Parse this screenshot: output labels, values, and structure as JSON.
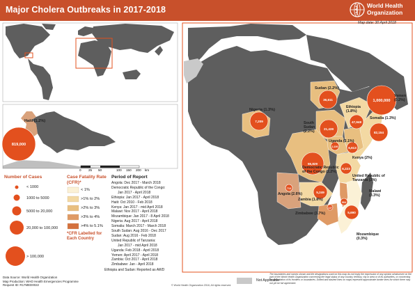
{
  "title": "Major Cholera Outbreaks in 2017-2018",
  "organization": {
    "line1": "World Health",
    "line2": "Organization"
  },
  "map_date": "Map date: 30 April 2018",
  "countries": [
    {
      "name": "Haiti (1.2%)",
      "cases": "819,000"
    },
    {
      "name": "Nigeria (1.3%)",
      "cases": "7,209"
    },
    {
      "name": "Sudan (2.2%)",
      "cases": "36,611"
    },
    {
      "name": "Yemen (0.2%)",
      "cases": "1,000,000"
    },
    {
      "name": "Ethiopia (1.8%)",
      "cases": "47,948"
    },
    {
      "name": "Somalia (1.3%)",
      "cases": "82,154"
    },
    {
      "name": "South Sudan (2.2%)",
      "cases": "21,439"
    },
    {
      "name": "Uganda (2.1%)",
      "cases": "2,100"
    },
    {
      "name": "Kenya (2%)",
      "cases": "6,613"
    },
    {
      "name": "Democratic Republic of the Congo (2.2%)",
      "cases": "55,829"
    },
    {
      "name": "United Republic of Tanzania (2%)",
      "cases": "6,223"
    },
    {
      "name": "Angola (2.6%)",
      "cases": "713"
    },
    {
      "name": "Zambia (1.8%)",
      "cases": "5,249"
    },
    {
      "name": "Malawi (3.3%)",
      "cases": "904"
    },
    {
      "name": "Mozambique (0.3%)",
      "cases": "5,690"
    },
    {
      "name": "Zimbabwe (3.7%)",
      "cases": "137"
    }
  ],
  "legend_cases": {
    "title": "Number of Cases",
    "items": [
      "< 1000",
      "1000 to 5000",
      "5000 to 20,000",
      "20,000 to 100,000",
      "> 100,000"
    ]
  },
  "legend_cfr": {
    "title": "Case Fatality Rate (CFR)*",
    "items": [
      "< 1%",
      ">1% to 2%",
      ">2% to 3%",
      ">3% to 4%",
      ">4% to 5.1%"
    ],
    "note": "*CFR Labelled for Each Country",
    "colors": [
      "#fbf1d6",
      "#f3d9a3",
      "#e8bf80",
      "#df9a65",
      "#d4713e"
    ]
  },
  "period": {
    "title": "Period of Report",
    "lines": [
      "Angola: Dec 2017 - March 2018",
      "Democratic Republic of the Congo:",
      "Jan 2017 - April 2018",
      "Ethiopia: Jan 2017 - April 2018",
      "Haiti: Oct 2010 - Feb 2018",
      "Kenya: Jan 2017 - mid April 2018",
      "Malawi: Nov 2017 - April 2018",
      "Mozambique: Jan 2017 - 8 April 2018",
      "Nigeria: Aug 2017 - April 2018",
      "Somalia: March 2017 - March 2018",
      "South Sudan: Aug 2016 - Dec 2017",
      "Sudan: Aug 2016 - Feb 2018",
      "United Republic of Tanzania:",
      "Jan 2017 - mid April 2018",
      "Uganda: Feb 2018 - April 2018",
      "Yemen: April 2017 - April 2018",
      "Zambia: Oct 2017 - April 2018",
      "Zimbabwe: Jan - April 2018"
    ],
    "note": "Ethiopia and Sudan: Reported as AWD"
  },
  "scale": {
    "ticks": [
      "0",
      "25",
      "50",
      "100",
      "150",
      "200"
    ],
    "unit": "km"
  },
  "not_applicable": "Not Applicable",
  "footer": {
    "source": "Data Source: World Health Organization",
    "production": "Map Production: WHO Health Emergencies Programme",
    "request": "Request ID: R17MED0022",
    "copyright": "© World Health Organization 2018, All rights reserved.",
    "disclaimer": "The boundaries and names shown and the designations used on this map do not imply the expression of any opinion whatsoever on the part of the World Health Organization concerning the legal status of any country, territory, city or area or of its authorities, or concerning the delimitation of its frontiers or boundaries. Dotted and dashed lines on maps represent approximate border lines for which there may not yet be full agreement."
  },
  "colors": {
    "brand": "#c8502b",
    "bubble": "#e3501e",
    "land": "#5e5e5e",
    "water": "#ffffff",
    "not_applicable": "#c9c9c9"
  }
}
